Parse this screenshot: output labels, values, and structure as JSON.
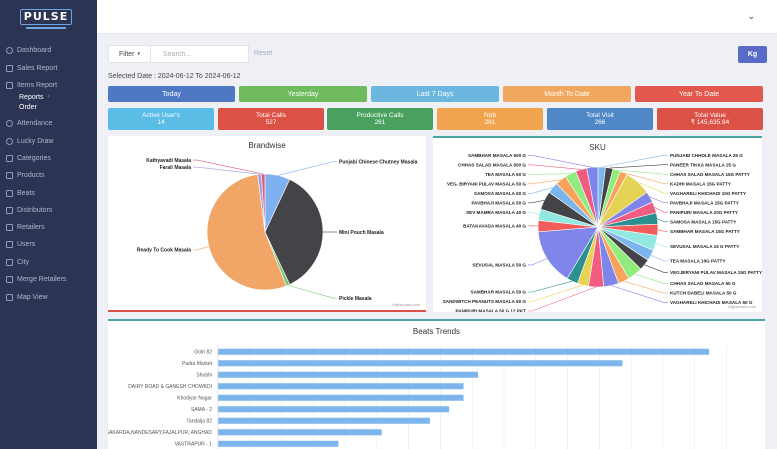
{
  "brand": {
    "logo_text": "PULSE"
  },
  "sidebar": {
    "items": [
      {
        "label": "Dashboard"
      },
      {
        "label": "Sales Report"
      },
      {
        "label": "Items Report"
      },
      {
        "label": "Reports"
      },
      {
        "label": "Order"
      },
      {
        "label": "Attendance"
      },
      {
        "label": "Lucky Draw"
      },
      {
        "label": "Categories"
      },
      {
        "label": "Products"
      },
      {
        "label": "Beats"
      },
      {
        "label": "Distributors"
      },
      {
        "label": "Retailers"
      },
      {
        "label": "Users"
      },
      {
        "label": "City"
      },
      {
        "label": "Merge Retailers"
      },
      {
        "label": "Map View"
      }
    ]
  },
  "filter": {
    "button_label": "Filter",
    "search_placeholder": "Search...",
    "reset_label": "Reset",
    "unit_button": "Kg"
  },
  "selected_date": "Selected Date : 2024-06-12 To 2024-06-12",
  "date_buttons": [
    {
      "label": "Today",
      "color": "#4f78c4"
    },
    {
      "label": "Yesterday",
      "color": "#6fba5e"
    },
    {
      "label": "Last 7 Days",
      "color": "#6cb7e0"
    },
    {
      "label": "Month To Date",
      "color": "#f0a85f"
    },
    {
      "label": "Year To Date",
      "color": "#e2584c"
    }
  ],
  "stats": [
    {
      "label": "Active User's",
      "value": "14",
      "color": "#5bbde6"
    },
    {
      "label": "Total Calls",
      "value": "527",
      "color": "#dc5145"
    },
    {
      "label": "Productive Calls",
      "value": "261",
      "color": "#4aa05e"
    },
    {
      "label": "Nob",
      "value": "261",
      "color": "#f1a34e"
    },
    {
      "label": "Total Visit",
      "value": "266",
      "color": "#4f86c6"
    },
    {
      "label": "Total Value",
      "value": "₹ 145,635.94",
      "color": "#dc5145"
    }
  ],
  "chart_data": [
    {
      "type": "pie",
      "title": "Brandwise",
      "credit": "Highcharts.com",
      "slices": [
        {
          "name": "Punjabi Chinese Chutney Masala",
          "value": 7,
          "color": "#7eb2ee"
        },
        {
          "name": "Mini Pouch Masala",
          "value": 36,
          "color": "#434348"
        },
        {
          "name": "Pickle Masala",
          "value": 1,
          "color": "#7ac773"
        },
        {
          "name": "Ready To Cook Masala",
          "value": 54,
          "color": "#f1a668"
        },
        {
          "name": "Farali Masala",
          "value": 1,
          "color": "#9b9be6"
        },
        {
          "name": "Kathyavadi Masala",
          "value": 1,
          "color": "#e05b7a"
        }
      ]
    },
    {
      "type": "pie",
      "title": "SKU",
      "credit": "Highcharts.com",
      "slices": [
        {
          "name": "PUNJABI CHHOLE MASALA 25 G",
          "value": 2,
          "color": "#7cb5ec"
        },
        {
          "name": "PANEER TIKKA MASALA 25 G",
          "value": 2,
          "color": "#434348"
        },
        {
          "name": "CHHAS SALAD MASALA 15G PATTY",
          "value": 2,
          "color": "#90ed7d"
        },
        {
          "name": "KADHI MASALA 15G PATTY",
          "value": 2,
          "color": "#f7a35c"
        },
        {
          "name": "VAGHARELI KHICHADI 10G PATTY",
          "value": 7,
          "color": "#e4d354"
        },
        {
          "name": "PAVBHAJI MASALA 15G PATTY",
          "value": 3,
          "color": "#8085e9"
        },
        {
          "name": "PANIPURI MASALA 20G PATTY",
          "value": 3,
          "color": "#f15c80"
        },
        {
          "name": "SAMOSA MASALA 15G PATTY",
          "value": 3,
          "color": "#2b908f"
        },
        {
          "name": "SAMBHAR MASALA 15G PATTY",
          "value": 3,
          "color": "#f45b5b"
        },
        {
          "name": "SEVUSAL MASALA 15 G PATTY",
          "value": 4,
          "color": "#91e8e1"
        },
        {
          "name": "TEA MASALA 10G PATTY",
          "value": 3,
          "color": "#7cb5ec"
        },
        {
          "name": "VEG.BIRYANI PULAV MASALA 15G PATTY",
          "value": 3,
          "color": "#434348"
        },
        {
          "name": "CHHAS SALAD MASALA 50 G",
          "value": 4,
          "color": "#90ed7d"
        },
        {
          "name": "KUTCH DABELI MASALA 50 G",
          "value": 3,
          "color": "#f7a35c"
        },
        {
          "name": "VAGHARELI KHICHADI MASALA 50 G",
          "value": 4,
          "color": "#8085e9"
        },
        {
          "name": "PANIPURI MASALA 50 G 12 PKT",
          "value": 4,
          "color": "#f15c80"
        },
        {
          "name": "SANDWITCH PEANUTS MASALA 50 G",
          "value": 3,
          "color": "#e4d354"
        },
        {
          "name": "SAMBHAR MASALA 50 G",
          "value": 3,
          "color": "#2b908f"
        },
        {
          "name": "SEVUSAL MASALA 50 G",
          "value": 15,
          "color": "#8085e9"
        },
        {
          "name": "BATAKAVADA MASALA 40 G",
          "value": 3,
          "color": "#f45b5b"
        },
        {
          "name": "SEV MAMRA MASALA 40 G",
          "value": 3,
          "color": "#91e8e1"
        },
        {
          "name": "PAVBHAJI MASALA 50 G",
          "value": 5,
          "color": "#434348"
        },
        {
          "name": "SAMOSA MASALA 50 G",
          "value": 3,
          "color": "#7cb5ec"
        },
        {
          "name": "VEG. BIRYANI PULAV MASALA 50 G",
          "value": 3,
          "color": "#f7a35c"
        },
        {
          "name": "TEA MASALA 50 G",
          "value": 3,
          "color": "#90ed7d"
        },
        {
          "name": "CHHAS SALAD MASALA 500 G",
          "value": 3,
          "color": "#f15c80"
        },
        {
          "name": "SAMBHAR MASALA 500 G",
          "value": 3,
          "color": "#8085e9"
        }
      ]
    },
    {
      "type": "bar",
      "title": "Beats Trends",
      "categories": [
        "Gotri 82",
        "Padra Market",
        "Shubhi",
        "DAIRY ROAD & GANESH CHOWKDI",
        "Khodiyar Nagar",
        "SAMA - 2",
        "Tandalja 82",
        "SAKARDA,NANDESARY,FAJALPUR, ANGHAD",
        "VASTRAPUR - 1"
      ],
      "values": [
        102,
        84,
        54,
        51,
        51,
        48,
        44,
        34,
        25
      ],
      "xlim": [
        0,
        108
      ]
    }
  ]
}
